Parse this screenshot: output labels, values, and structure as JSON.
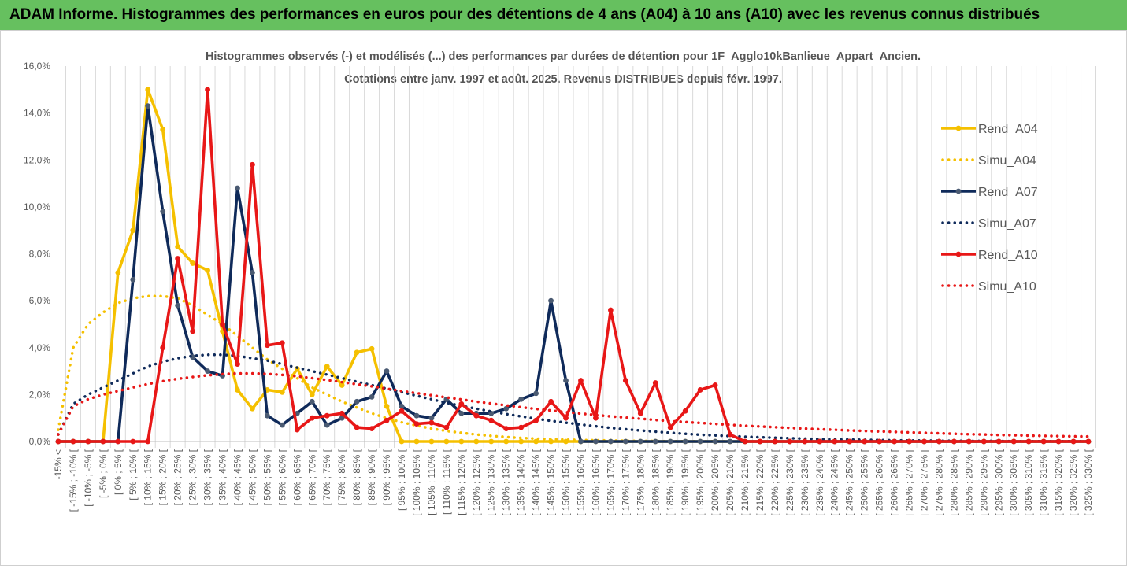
{
  "banner": {
    "title": "ADAM Informe. Histogrammes des performances en euros pour des détentions de 4 ans (A04) à 10 ans (A10) avec les revenus connus distribués"
  },
  "chart_data": {
    "type": "line",
    "title_line1": "Histogrammes observés (-) et modélisés (...) des performances par durées de détention pour 1F_Agglo10kBanlieue_Appart_Ancien.",
    "title_line2": "Cotations entre janv. 1997 et août. 2025. Revenus DISTRIBUES depuis févr. 1997.",
    "ylim": [
      0,
      16
    ],
    "y_ticks": [
      "0,0%",
      "2,0%",
      "4,0%",
      "6,0%",
      "8,0%",
      "10,0%",
      "12,0%",
      "14,0%",
      "16,0%"
    ],
    "y_unit": "%",
    "grid": "vertical",
    "legend_position": "right",
    "categories": [
      "-15% <",
      "[ -15% ; -10% [",
      "[ -10% ; -5% [",
      "[ -5% ; 0% [",
      "[ 0% ; 5% [",
      "[ 5% ; 10% [",
      "[ 10% ; 15% [",
      "[ 15% ; 20% [",
      "[ 20% ; 25% [",
      "[ 25% ; 30% [",
      "[ 30% ; 35% [",
      "[ 35% ; 40% [",
      "[ 40% ; 45% [",
      "[ 45% ; 50% [",
      "[ 50% ; 55% [",
      "[ 55% ; 60% [",
      "[ 60% ; 65% [",
      "[ 65% ; 70% [",
      "[ 70% ; 75% [",
      "[ 75% ; 80% [",
      "[ 80% ; 85% [",
      "[ 85% ; 90% [",
      "[ 90% ; 95% [",
      "[ 95% ; 100% [",
      "[ 100% ; 105% [",
      "[ 105% ; 110% [",
      "[ 110% ; 115% [",
      "[ 115% ; 120% [",
      "[ 120% ; 125% [",
      "[ 125% ; 130% [",
      "[ 130% ; 135% [",
      "[ 135% ; 140% [",
      "[ 140% ; 145% [",
      "[ 145% ; 150% [",
      "[ 150% ; 155% [",
      "[ 155% ; 160% [",
      "[ 160% ; 165% [",
      "[ 165% ; 170% [",
      "[ 170% ; 175% [",
      "[ 175% ; 180% [",
      "[ 180% ; 185% [",
      "[ 185% ; 190% [",
      "[ 190% ; 195% [",
      "[ 195% ; 200% [",
      "[ 200% ; 205% [",
      "[ 205% ; 210% [",
      "[ 210% ; 215% [",
      "[ 215% ; 220% [",
      "[ 220% ; 225% [",
      "[ 225% ; 230% [",
      "[ 230% ; 235% [",
      "[ 235% ; 240% [",
      "[ 240% ; 245% [",
      "[ 245% ; 250% [",
      "[ 250% ; 255% [",
      "[ 255% ; 260% [",
      "[ 260% ; 265% [",
      "[ 265% ; 270% [",
      "[ 270% ; 275% [",
      "[ 275% ; 280% [",
      "[ 280% ; 285% [",
      "[ 285% ; 290% [",
      "[ 290% ; 295% [",
      "[ 295% ; 300% [",
      "[ 300% ; 305% [",
      "[ 305% ; 310% [",
      "[ 310% ; 315% [",
      "[ 315% ; 320% [",
      "[ 320% ; 325% [",
      "[ 325% ; 330% ["
    ],
    "series": [
      {
        "name": "Rend_A04",
        "style": "solid",
        "color": "#f5c000",
        "values": [
          0,
          0,
          0,
          0,
          7.2,
          9.0,
          15.0,
          13.3,
          8.3,
          7.6,
          7.3,
          4.7,
          2.2,
          1.4,
          2.2,
          2.1,
          3.1,
          2.0,
          3.2,
          2.4,
          3.8,
          3.95,
          1.5,
          0,
          0,
          0,
          0,
          0,
          0,
          0,
          0,
          0,
          0,
          0,
          0,
          0,
          0,
          0,
          0,
          0,
          0,
          0,
          0,
          0,
          0,
          0,
          0,
          0,
          0,
          0,
          0,
          0,
          0,
          0,
          0,
          0,
          0,
          0,
          0,
          0,
          0,
          0,
          0,
          0,
          0,
          0,
          0,
          0,
          0,
          0
        ]
      },
      {
        "name": "Simu_A04",
        "style": "dotted",
        "color": "#f5c000",
        "values": [
          0.5,
          4.0,
          5.0,
          5.5,
          5.9,
          6.1,
          6.2,
          6.2,
          6.1,
          5.8,
          5.4,
          5.0,
          4.5,
          4.0,
          3.5,
          3.1,
          2.7,
          2.3,
          2.0,
          1.7,
          1.45,
          1.2,
          1.0,
          0.82,
          0.68,
          0.55,
          0.45,
          0.37,
          0.3,
          0.24,
          0.19,
          0.15,
          0.12,
          0.1,
          0.08,
          0.06,
          0.05,
          0.04,
          0.03,
          0.02,
          0.02,
          0.01,
          0.01,
          0.01,
          0.01,
          0,
          0,
          0,
          0,
          0,
          0,
          0,
          0,
          0,
          0,
          0,
          0,
          0,
          0,
          0,
          0,
          0,
          0,
          0,
          0,
          0,
          0,
          0,
          0,
          0
        ]
      },
      {
        "name": "Rend_A07",
        "style": "solid",
        "color": "#0f2a5a",
        "values": [
          0,
          0,
          0,
          0,
          0,
          6.9,
          14.3,
          9.8,
          5.8,
          3.6,
          3.0,
          2.8,
          10.8,
          7.2,
          1.1,
          0.7,
          1.2,
          1.7,
          0.7,
          1.0,
          1.7,
          1.9,
          3.0,
          1.5,
          1.1,
          1.0,
          1.8,
          1.2,
          1.2,
          1.2,
          1.4,
          1.8,
          2.05,
          6.0,
          2.6,
          0,
          0,
          0,
          0,
          0,
          0,
          0,
          0,
          0,
          0,
          0,
          0,
          0,
          0,
          0,
          0,
          0,
          0,
          0,
          0,
          0,
          0,
          0,
          0,
          0,
          0,
          0,
          0,
          0,
          0,
          0,
          0,
          0,
          0,
          0
        ]
      },
      {
        "name": "Simu_A07",
        "style": "dotted",
        "color": "#0f2a5a",
        "values": [
          0.3,
          1.6,
          2.0,
          2.3,
          2.6,
          2.9,
          3.2,
          3.4,
          3.55,
          3.65,
          3.7,
          3.7,
          3.65,
          3.55,
          3.45,
          3.3,
          3.15,
          3.0,
          2.85,
          2.7,
          2.55,
          2.4,
          2.25,
          2.1,
          1.95,
          1.8,
          1.65,
          1.52,
          1.4,
          1.28,
          1.17,
          1.07,
          0.97,
          0.88,
          0.8,
          0.72,
          0.65,
          0.58,
          0.52,
          0.47,
          0.42,
          0.37,
          0.33,
          0.29,
          0.26,
          0.23,
          0.2,
          0.18,
          0.16,
          0.14,
          0.12,
          0.1,
          0.09,
          0.08,
          0.07,
          0.06,
          0.05,
          0.04,
          0.04,
          0.03,
          0.03,
          0.02,
          0.02,
          0.02,
          0.01,
          0.01,
          0.01,
          0.01,
          0.01,
          0.01
        ]
      },
      {
        "name": "Rend_A10",
        "style": "solid",
        "color": "#e81717",
        "values": [
          0,
          0,
          0,
          0,
          0,
          0,
          0,
          4.0,
          7.8,
          4.7,
          15.0,
          5.0,
          3.3,
          11.8,
          4.1,
          4.2,
          0.5,
          1.0,
          1.1,
          1.2,
          0.6,
          0.55,
          0.9,
          1.3,
          0.75,
          0.8,
          0.6,
          1.6,
          1.1,
          0.9,
          0.55,
          0.6,
          0.9,
          1.7,
          1.0,
          2.6,
          1.0,
          5.6,
          2.6,
          1.2,
          2.5,
          0.6,
          1.3,
          2.2,
          2.4,
          0.3,
          0,
          0,
          0,
          0,
          0,
          0,
          0,
          0,
          0,
          0,
          0,
          0,
          0,
          0,
          0,
          0,
          0,
          0,
          0,
          0,
          0,
          0,
          0,
          0
        ]
      },
      {
        "name": "Simu_A10",
        "style": "dotted",
        "color": "#e81717",
        "values": [
          0.3,
          1.5,
          1.8,
          2.0,
          2.15,
          2.3,
          2.45,
          2.57,
          2.67,
          2.75,
          2.82,
          2.87,
          2.9,
          2.9,
          2.88,
          2.84,
          2.78,
          2.7,
          2.62,
          2.53,
          2.44,
          2.35,
          2.25,
          2.15,
          2.06,
          1.97,
          1.88,
          1.79,
          1.7,
          1.62,
          1.54,
          1.46,
          1.39,
          1.32,
          1.25,
          1.19,
          1.13,
          1.07,
          1.02,
          0.97,
          0.92,
          0.87,
          0.83,
          0.79,
          0.75,
          0.71,
          0.67,
          0.64,
          0.61,
          0.58,
          0.55,
          0.52,
          0.5,
          0.47,
          0.45,
          0.43,
          0.41,
          0.39,
          0.37,
          0.35,
          0.33,
          0.31,
          0.3,
          0.28,
          0.27,
          0.25,
          0.24,
          0.23,
          0.22,
          0.21
        ]
      }
    ]
  }
}
